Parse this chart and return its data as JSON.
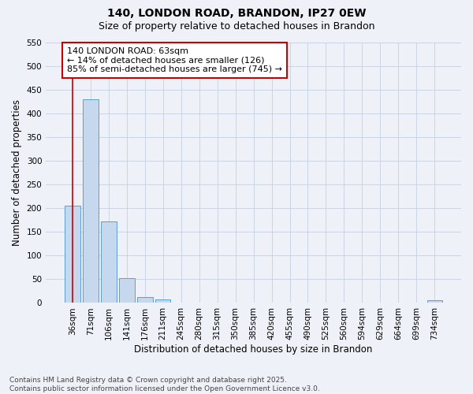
{
  "title1": "140, LONDON ROAD, BRANDON, IP27 0EW",
  "title2": "Size of property relative to detached houses in Brandon",
  "xlabel": "Distribution of detached houses by size in Brandon",
  "ylabel": "Number of detached properties",
  "categories": [
    "36sqm",
    "71sqm",
    "106sqm",
    "141sqm",
    "176sqm",
    "211sqm",
    "245sqm",
    "280sqm",
    "315sqm",
    "350sqm",
    "385sqm",
    "420sqm",
    "455sqm",
    "490sqm",
    "525sqm",
    "560sqm",
    "594sqm",
    "629sqm",
    "664sqm",
    "699sqm",
    "734sqm"
  ],
  "values": [
    205,
    430,
    172,
    53,
    13,
    8,
    0,
    0,
    0,
    0,
    0,
    0,
    0,
    0,
    0,
    0,
    0,
    0,
    0,
    0,
    5
  ],
  "bar_color": "#c5d8ed",
  "bar_edge_color": "#5a9fd4",
  "vline_color": "#cc0000",
  "annotation_text": "140 LONDON ROAD: 63sqm\n← 14% of detached houses are smaller (126)\n85% of semi-detached houses are larger (745) →",
  "annotation_box_color": "#ffffff",
  "annotation_box_edge_color": "#cc0000",
  "ylim": [
    0,
    550
  ],
  "yticks": [
    0,
    50,
    100,
    150,
    200,
    250,
    300,
    350,
    400,
    450,
    500,
    550
  ],
  "grid_color": "#c8d0de",
  "bg_color": "#eef2f8",
  "footer": "Contains HM Land Registry data © Crown copyright and database right 2025.\nContains public sector information licensed under the Open Government Licence v3.0.",
  "title1_fontsize": 10,
  "title2_fontsize": 9,
  "xlabel_fontsize": 8.5,
  "ylabel_fontsize": 8.5,
  "tick_fontsize": 7.5,
  "annotation_fontsize": 8,
  "footer_fontsize": 6.5
}
